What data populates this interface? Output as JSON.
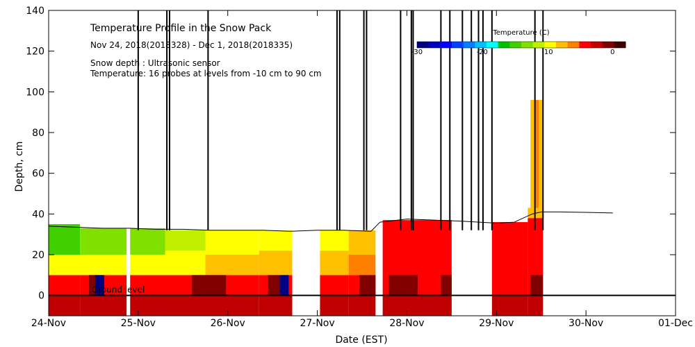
{
  "chart_data": {
    "type": "heatmap",
    "title": "Temperature Profile in the Snow Pack",
    "subtitle": "Nov 24, 2018(2018328) - Dec  1, 2018(2018335)",
    "notes": [
      "Snow depth : Ultrasonic sensor",
      "Temperature: 16 probes at levels from -10 cm to 90 cm"
    ],
    "xlabel": "Date (EST)",
    "ylabel": "Depth, cm",
    "ground_label": "Ground level",
    "xlim": [
      0,
      7
    ],
    "ylim": [
      -10,
      140
    ],
    "x_ticks": [
      {
        "value": 0,
        "label": "24-Nov"
      },
      {
        "value": 1,
        "label": "25-Nov"
      },
      {
        "value": 2,
        "label": "26-Nov"
      },
      {
        "value": 3,
        "label": "27-Nov"
      },
      {
        "value": 4,
        "label": "28-Nov"
      },
      {
        "value": 5,
        "label": "29-Nov"
      },
      {
        "value": 6,
        "label": "30-Nov"
      },
      {
        "value": 7,
        "label": "01-Dec"
      }
    ],
    "y_ticks": [
      0,
      20,
      40,
      60,
      80,
      100,
      120,
      140
    ],
    "colorbar": {
      "title": "Temperature (C)",
      "ticks": [
        {
          "value": -30,
          "label": "-30"
        },
        {
          "value": -20,
          "label": "-20"
        },
        {
          "value": -10,
          "label": "-10"
        },
        {
          "value": 0,
          "label": "0"
        }
      ],
      "range": [
        -30,
        2
      ],
      "colors": [
        "#000080",
        "#0000c0",
        "#0000ff",
        "#0040ff",
        "#0080ff",
        "#00c0ff",
        "#00ffff",
        "#00c000",
        "#40d000",
        "#80e000",
        "#c0f000",
        "#ffff00",
        "#ffc000",
        "#ff8000",
        "#ff0000",
        "#c00000",
        "#800000",
        "#400000"
      ]
    },
    "temperature_bands": [
      {
        "x0": 0.0,
        "x1": 0.35,
        "layers": [
          {
            "y0": -10,
            "y1": 0,
            "color": "#c00000"
          },
          {
            "y0": 0,
            "y1": 10,
            "color": "#ff0000"
          },
          {
            "y0": 10,
            "y1": 20,
            "color": "#ffff00"
          },
          {
            "y0": 20,
            "y1": 35,
            "color": "#40d000"
          }
        ]
      },
      {
        "x0": 0.35,
        "x1": 0.87,
        "layers": [
          {
            "y0": -10,
            "y1": 0,
            "color": "#c00000"
          },
          {
            "y0": 0,
            "y1": 10,
            "color": "#ff0000"
          },
          {
            "y0": 10,
            "y1": 20,
            "color": "#ffff00"
          },
          {
            "y0": 20,
            "y1": 33,
            "color": "#80e000"
          }
        ]
      },
      {
        "x0": 0.91,
        "x1": 1.3,
        "layers": [
          {
            "y0": -10,
            "y1": 0,
            "color": "#c00000"
          },
          {
            "y0": 0,
            "y1": 10,
            "color": "#ff0000"
          },
          {
            "y0": 10,
            "y1": 20,
            "color": "#ffff00"
          },
          {
            "y0": 20,
            "y1": 33,
            "color": "#80e000"
          }
        ]
      },
      {
        "x0": 1.3,
        "x1": 1.75,
        "layers": [
          {
            "y0": -10,
            "y1": 0,
            "color": "#c00000"
          },
          {
            "y0": 0,
            "y1": 10,
            "color": "#ff0000"
          },
          {
            "y0": 10,
            "y1": 22,
            "color": "#ffff00"
          },
          {
            "y0": 22,
            "y1": 32,
            "color": "#c0f000"
          }
        ]
      },
      {
        "x0": 1.75,
        "x1": 2.35,
        "layers": [
          {
            "y0": -10,
            "y1": 0,
            "color": "#c00000"
          },
          {
            "y0": 0,
            "y1": 10,
            "color": "#ff0000"
          },
          {
            "y0": 10,
            "y1": 20,
            "color": "#ffc000"
          },
          {
            "y0": 20,
            "y1": 32,
            "color": "#ffff00"
          }
        ]
      },
      {
        "x0": 2.35,
        "x1": 2.72,
        "layers": [
          {
            "y0": -10,
            "y1": 0,
            "color": "#c00000"
          },
          {
            "y0": 0,
            "y1": 10,
            "color": "#ff0000"
          },
          {
            "y0": 10,
            "y1": 22,
            "color": "#ffc000"
          },
          {
            "y0": 22,
            "y1": 32,
            "color": "#ffff00"
          }
        ]
      },
      {
        "x0": 3.03,
        "x1": 3.35,
        "layers": [
          {
            "y0": -10,
            "y1": 0,
            "color": "#c00000"
          },
          {
            "y0": 0,
            "y1": 10,
            "color": "#ff0000"
          },
          {
            "y0": 10,
            "y1": 22,
            "color": "#ffc000"
          },
          {
            "y0": 22,
            "y1": 32,
            "color": "#ffff00"
          }
        ]
      },
      {
        "x0": 3.35,
        "x1": 3.65,
        "layers": [
          {
            "y0": -10,
            "y1": 0,
            "color": "#c00000"
          },
          {
            "y0": 0,
            "y1": 10,
            "color": "#ff0000"
          },
          {
            "y0": 10,
            "y1": 20,
            "color": "#ff8000"
          },
          {
            "y0": 20,
            "y1": 32,
            "color": "#ffc000"
          }
        ]
      },
      {
        "x0": 3.73,
        "x1": 4.5,
        "layers": [
          {
            "y0": -10,
            "y1": 0,
            "color": "#c00000"
          },
          {
            "y0": 0,
            "y1": 37,
            "color": "#ff0000"
          }
        ]
      },
      {
        "x0": 4.95,
        "x1": 5.35,
        "layers": [
          {
            "y0": -10,
            "y1": 0,
            "color": "#c00000"
          },
          {
            "y0": 0,
            "y1": 36,
            "color": "#ff0000"
          }
        ]
      },
      {
        "x0": 5.35,
        "x1": 5.52,
        "layers": [
          {
            "y0": -10,
            "y1": 0,
            "color": "#c00000"
          },
          {
            "y0": 0,
            "y1": 38,
            "color": "#ff0000"
          },
          {
            "y0": 38,
            "y1": 43,
            "color": "#ffc000"
          }
        ]
      }
    ],
    "dark_patches": [
      {
        "x0": 0.45,
        "x1": 0.55,
        "y0": 0,
        "y1": 10,
        "color": "#800000"
      },
      {
        "x0": 0.52,
        "x1": 0.62,
        "y0": 0,
        "y1": 10,
        "color": "#000080"
      },
      {
        "x0": 1.6,
        "x1": 1.98,
        "y0": 0,
        "y1": 10,
        "color": "#800000"
      },
      {
        "x0": 2.45,
        "x1": 2.58,
        "y0": 0,
        "y1": 10,
        "color": "#800000"
      },
      {
        "x0": 2.58,
        "x1": 2.68,
        "y0": 0,
        "y1": 10,
        "color": "#000080"
      },
      {
        "x0": 3.47,
        "x1": 3.65,
        "y0": 0,
        "y1": 10,
        "color": "#800000"
      },
      {
        "x0": 3.8,
        "x1": 4.12,
        "y0": 0,
        "y1": 10,
        "color": "#800000"
      },
      {
        "x0": 4.38,
        "x1": 4.5,
        "y0": 0,
        "y1": 10,
        "color": "#800000"
      },
      {
        "x0": 5.38,
        "x1": 5.52,
        "y0": 0,
        "y1": 10,
        "color": "#800000"
      }
    ],
    "probe_column_flag": {
      "x0": 5.38,
      "x1": 5.52,
      "y0": 43,
      "y1": 96,
      "colors": [
        "#ffc000",
        "#ff8000",
        "#ffc000"
      ]
    },
    "snow_depth": {
      "x": [
        0,
        0.3,
        0.6,
        0.9,
        1.2,
        1.5,
        1.8,
        2.1,
        2.4,
        2.7,
        3.0,
        3.3,
        3.6,
        3.7,
        4.0,
        4.3,
        4.6,
        5.0,
        5.2,
        5.4,
        5.5,
        5.7,
        6.0,
        6.3
      ],
      "y": [
        34,
        33.5,
        33,
        33,
        32.5,
        32.5,
        32,
        32,
        32,
        31.5,
        32,
        32,
        31.5,
        36,
        37.5,
        37,
        36.5,
        35.5,
        36,
        40,
        41,
        41,
        40.8,
        40.5
      ]
    },
    "spikes": [
      1.0,
      1.32,
      1.35,
      1.78,
      3.22,
      3.25,
      3.52,
      3.55,
      3.93,
      4.05,
      4.07,
      4.38,
      4.48,
      4.62,
      4.72,
      4.8,
      4.85,
      4.95,
      5.43,
      5.52
    ]
  }
}
